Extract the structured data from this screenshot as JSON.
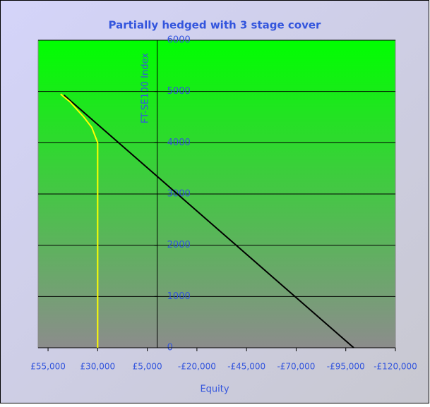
{
  "chart_data": {
    "type": "line",
    "title": "Partially hedged with 3 stage cover",
    "x_label": "Equity",
    "y_label": "FT-SE100 Index",
    "xlim": [
      60000,
      -120000
    ],
    "xticks": [
      {
        "value": 55000,
        "label": "£55,000"
      },
      {
        "value": 30000,
        "label": "£30,000"
      },
      {
        "value": 5000,
        "label": "£5,000"
      },
      {
        "value": -20000,
        "label": "-£20,000"
      },
      {
        "value": -45000,
        "label": "-£45,000"
      },
      {
        "value": -70000,
        "label": "-£70,000"
      },
      {
        "value": -95000,
        "label": "-£95,000"
      },
      {
        "value": -120000,
        "label": "-£120,000"
      }
    ],
    "ylim": [
      0,
      6000
    ],
    "yticks": [
      0,
      1000,
      2000,
      3000,
      4000,
      5000,
      6000
    ],
    "grid": true,
    "series": [
      {
        "color": "#000000",
        "x": [
          47000,
          -99000
        ],
        "values": [
          4930,
          0
        ]
      },
      {
        "color": "#ffff00",
        "x": [
          48700,
          44000,
          37000,
          33000,
          30000,
          30000
        ],
        "values": [
          4950,
          4800,
          4500,
          4300,
          4000,
          0
        ]
      }
    ]
  }
}
